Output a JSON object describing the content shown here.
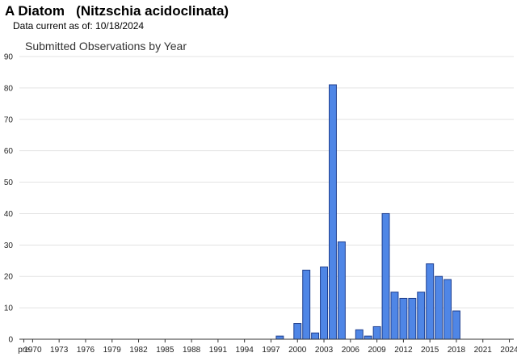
{
  "header": {
    "species_title": "A Diatom   (Nitzschia acidoclinata)",
    "data_current": "Data current as of: 10/18/2024"
  },
  "chart_data": {
    "type": "bar",
    "title": "Submitted Observations by Year",
    "xlabel": "",
    "ylabel": "",
    "ylim": [
      0,
      90
    ],
    "yticks": [
      0,
      10,
      20,
      30,
      40,
      50,
      60,
      70,
      80,
      90
    ],
    "grid": true,
    "bar_color": "#4f86e6",
    "bar_edge_color": "#1f3f8f",
    "categories": [
      "pre",
      "1970",
      "1971",
      "1972",
      "1973",
      "1974",
      "1975",
      "1976",
      "1977",
      "1978",
      "1979",
      "1980",
      "1981",
      "1982",
      "1983",
      "1984",
      "1985",
      "1986",
      "1987",
      "1988",
      "1989",
      "1990",
      "1991",
      "1992",
      "1993",
      "1994",
      "1995",
      "1996",
      "1997",
      "1998",
      "1999",
      "2000",
      "2001",
      "2002",
      "2003",
      "2004",
      "2005",
      "2006",
      "2007",
      "2008",
      "2009",
      "2010",
      "2011",
      "2012",
      "2013",
      "2014",
      "2015",
      "2016",
      "2017",
      "2018",
      "2019",
      "2020",
      "2021",
      "2022",
      "2023",
      "2024"
    ],
    "x_tick_labels": [
      "pre",
      "1970",
      "1973",
      "1976",
      "1979",
      "1982",
      "1985",
      "1988",
      "1991",
      "1994",
      "1997",
      "2000",
      "2003",
      "2006",
      "2009",
      "2012",
      "2015",
      "2018",
      "2021",
      "2024"
    ],
    "values": [
      0,
      0,
      0,
      0,
      0,
      0,
      0,
      0,
      0,
      0,
      0,
      0,
      0,
      0,
      0,
      0,
      0,
      0,
      0,
      0,
      0,
      0,
      0,
      0,
      0,
      0,
      0,
      0,
      0,
      1,
      0,
      5,
      22,
      2,
      23,
      81,
      31,
      0,
      3,
      1,
      4,
      40,
      15,
      13,
      13,
      15,
      24,
      20,
      19,
      9,
      0,
      0,
      0,
      0,
      0,
      0
    ]
  }
}
